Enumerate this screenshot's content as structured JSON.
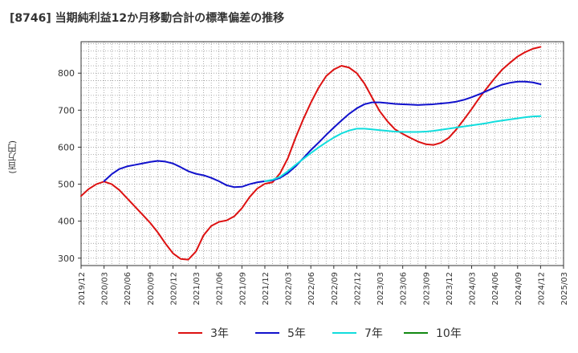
{
  "title": "[8746]  当期純利益12か月移動合計の標準偏差の推移",
  "chart_data": {
    "type": "line",
    "ylabel": "(百万円)",
    "xlabel": "",
    "ylim": [
      280,
      885
    ],
    "yticks": [
      300,
      400,
      500,
      600,
      700,
      800
    ],
    "xlim": [
      "2019-12",
      "2025-03"
    ],
    "xticks": [
      "2019/12",
      "2020/03",
      "2020/06",
      "2020/09",
      "2020/12",
      "2021/03",
      "2021/06",
      "2021/09",
      "2021/12",
      "2022/03",
      "2022/06",
      "2022/09",
      "2022/12",
      "2023/03",
      "2023/06",
      "2023/09",
      "2023/12",
      "2024/03",
      "2024/06",
      "2024/09",
      "2024/12",
      "2025/03"
    ],
    "grid": true,
    "legend_position": "bottom",
    "series": [
      {
        "name": "3年",
        "color": "#dd1111",
        "x": [
          "2019-12",
          "2020-01",
          "2020-02",
          "2020-03",
          "2020-04",
          "2020-05",
          "2020-06",
          "2020-07",
          "2020-08",
          "2020-09",
          "2020-10",
          "2020-11",
          "2020-12",
          "2021-01",
          "2021-02",
          "2021-03",
          "2021-04",
          "2021-05",
          "2021-06",
          "2021-07",
          "2021-08",
          "2021-09",
          "2021-10",
          "2021-11",
          "2021-12",
          "2022-01",
          "2022-02",
          "2022-03",
          "2022-04",
          "2022-05",
          "2022-06",
          "2022-07",
          "2022-08",
          "2022-09",
          "2022-10",
          "2022-11",
          "2022-12",
          "2023-01",
          "2023-02",
          "2023-03",
          "2023-04",
          "2023-05",
          "2023-06",
          "2023-07",
          "2023-08",
          "2023-09",
          "2023-10",
          "2023-11",
          "2023-12",
          "2024-01",
          "2024-02",
          "2024-03",
          "2024-04",
          "2024-05",
          "2024-06",
          "2024-07",
          "2024-08",
          "2024-09",
          "2024-10",
          "2024-11",
          "2024-12"
        ],
        "y": [
          468,
          487,
          500,
          507,
          500,
          484,
          462,
          440,
          418,
          396,
          370,
          340,
          313,
          298,
          296,
          318,
          362,
          387,
          398,
          402,
          413,
          435,
          465,
          488,
          501,
          505,
          530,
          570,
          625,
          675,
          720,
          760,
          792,
          810,
          820,
          815,
          800,
          772,
          734,
          697,
          670,
          648,
          636,
          625,
          615,
          608,
          606,
          612,
          625,
          648,
          675,
          703,
          733,
          760,
          786,
          810,
          828,
          845,
          857,
          866,
          871
        ]
      },
      {
        "name": "5年",
        "color": "#1111cc",
        "x": [
          "2020-03",
          "2020-04",
          "2020-05",
          "2020-06",
          "2020-07",
          "2020-08",
          "2020-09",
          "2020-10",
          "2020-11",
          "2020-12",
          "2021-01",
          "2021-02",
          "2021-03",
          "2021-04",
          "2021-05",
          "2021-06",
          "2021-07",
          "2021-08",
          "2021-09",
          "2021-10",
          "2021-11",
          "2021-12",
          "2022-01",
          "2022-02",
          "2022-03",
          "2022-04",
          "2022-05",
          "2022-06",
          "2022-07",
          "2022-08",
          "2022-09",
          "2022-10",
          "2022-11",
          "2022-12",
          "2023-01",
          "2023-02",
          "2023-03",
          "2023-04",
          "2023-05",
          "2023-06",
          "2023-07",
          "2023-08",
          "2023-09",
          "2023-10",
          "2023-11",
          "2023-12",
          "2024-01",
          "2024-02",
          "2024-03",
          "2024-04",
          "2024-05",
          "2024-06",
          "2024-07",
          "2024-08",
          "2024-09",
          "2024-10",
          "2024-11",
          "2024-12"
        ],
        "y": [
          508,
          527,
          541,
          548,
          552,
          556,
          560,
          563,
          561,
          556,
          546,
          535,
          528,
          524,
          517,
          508,
          497,
          492,
          493,
          500,
          505,
          508,
          510,
          517,
          530,
          548,
          570,
          592,
          612,
          633,
          653,
          672,
          690,
          705,
          716,
          721,
          721,
          719,
          717,
          716,
          715,
          714,
          715,
          716,
          718,
          720,
          723,
          728,
          735,
          743,
          752,
          761,
          769,
          774,
          777,
          777,
          775,
          770
        ]
      },
      {
        "name": "7年",
        "color": "#11dddd",
        "x": [
          "2021-12",
          "2022-01",
          "2022-02",
          "2022-03",
          "2022-04",
          "2022-05",
          "2022-06",
          "2022-07",
          "2022-08",
          "2022-09",
          "2022-10",
          "2022-11",
          "2022-12",
          "2023-01",
          "2023-02",
          "2023-03",
          "2023-04",
          "2023-05",
          "2023-06",
          "2023-07",
          "2023-08",
          "2023-09",
          "2023-10",
          "2023-11",
          "2023-12",
          "2024-01",
          "2024-02",
          "2024-03",
          "2024-04",
          "2024-05",
          "2024-06",
          "2024-07",
          "2024-08",
          "2024-09",
          "2024-10",
          "2024-11",
          "2024-12"
        ],
        "y": [
          508,
          512,
          520,
          535,
          552,
          568,
          584,
          599,
          613,
          626,
          637,
          645,
          650,
          650,
          648,
          646,
          644,
          642,
          641,
          641,
          641,
          642,
          644,
          647,
          650,
          653,
          656,
          659,
          662,
          665,
          669,
          672,
          675,
          678,
          681,
          683,
          684
        ]
      },
      {
        "name": "10年",
        "color": "#118811",
        "x": [],
        "y": []
      }
    ]
  }
}
